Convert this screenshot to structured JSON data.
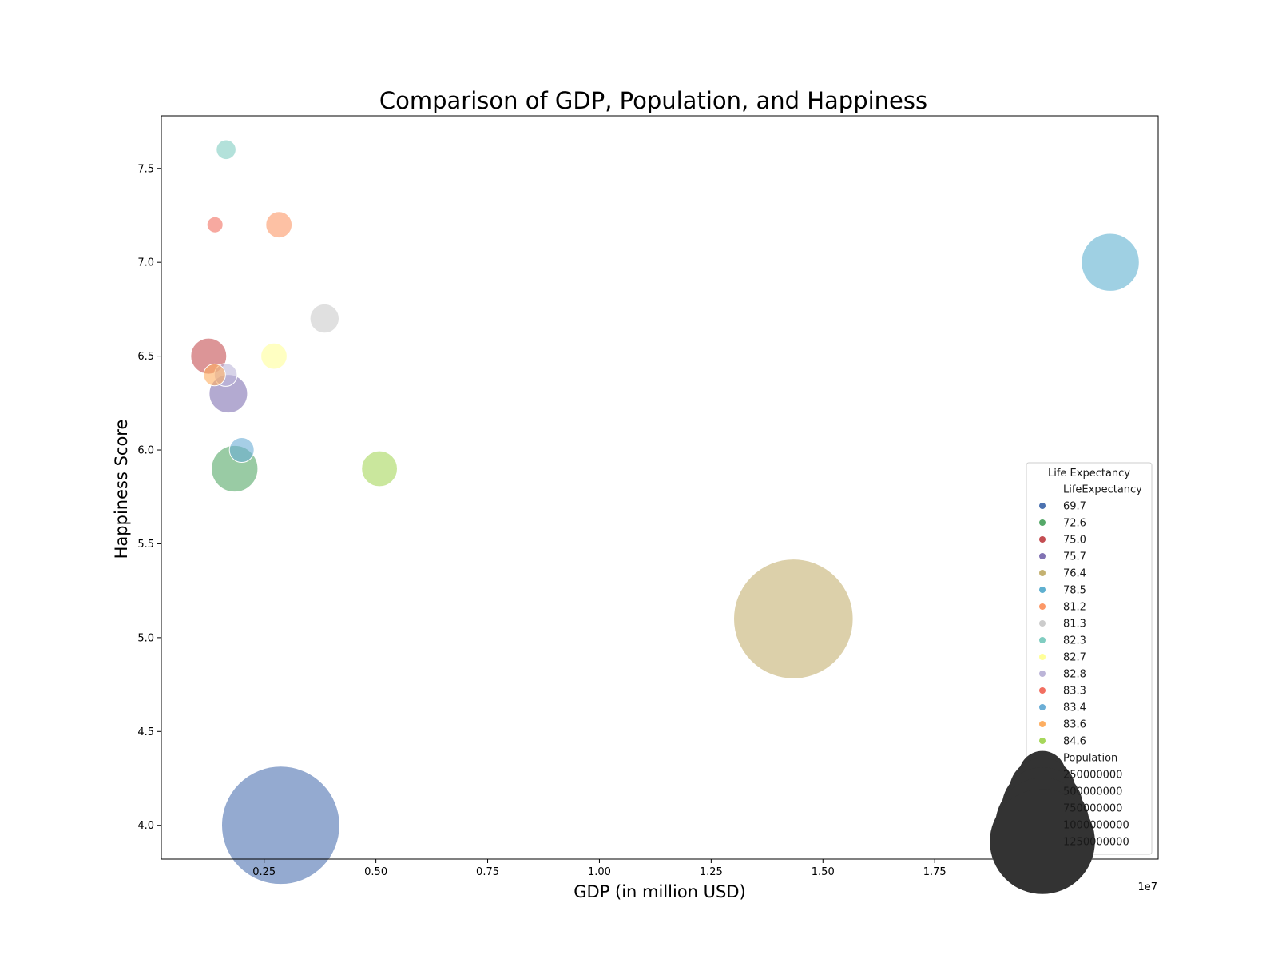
{
  "chart_data": {
    "type": "scatter",
    "title": "Comparison of GDP, Population, and Happiness",
    "xlabel": "GDP (in million USD)",
    "ylabel": "Happiness Score",
    "x_offset_text": "1e7",
    "x_scale_factor": 10000000,
    "xlim": [
      200000,
      22500000
    ],
    "ylim": [
      3.82,
      7.78
    ],
    "x_ticks": [
      2500000,
      5000000,
      7500000,
      10000000,
      12500000,
      15000000,
      17500000,
      20000000
    ],
    "x_tick_labels": [
      "0.25",
      "0.50",
      "0.75",
      "1.00",
      "1.25",
      "1.50",
      "1.75",
      "2.00"
    ],
    "y_ticks": [
      4.0,
      4.5,
      5.0,
      5.5,
      6.0,
      6.5,
      7.0,
      7.5
    ],
    "y_tick_labels": [
      "4.0",
      "4.5",
      "5.0",
      "5.5",
      "6.0",
      "6.5",
      "7.0",
      "7.5"
    ],
    "grid": false,
    "points": [
      {
        "x": 2870000,
        "y": 4.0,
        "population": 1366000000,
        "life_expectancy": "69.7",
        "color": "#4c72b0"
      },
      {
        "x": 14340000,
        "y": 5.1,
        "population": 1398000000,
        "life_expectancy": "76.4",
        "color": "#c4b171"
      },
      {
        "x": 21430000,
        "y": 7.0,
        "population": 328000000,
        "life_expectancy": "78.5",
        "color": "#5fb0d0"
      },
      {
        "x": 5080000,
        "y": 5.9,
        "population": 126000000,
        "life_expectancy": "84.6",
        "color": "#a6d75b"
      },
      {
        "x": 3850000,
        "y": 6.7,
        "population": 83000000,
        "life_expectancy": "81.3",
        "color": "#cccccc"
      },
      {
        "x": 2830000,
        "y": 7.2,
        "population": 67000000,
        "life_expectancy": "81.2",
        "color": "#fc9867"
      },
      {
        "x": 2720000,
        "y": 6.5,
        "population": 67000000,
        "life_expectancy": "82.7",
        "color": "#ffff99"
      },
      {
        "x": 2000000,
        "y": 6.0,
        "population": 60000000,
        "life_expectancy": "83.4",
        "color": "#6baed6"
      },
      {
        "x": 1650000,
        "y": 7.6,
        "population": 38000000,
        "life_expectancy": "82.3",
        "color": "#80cdc1"
      },
      {
        "x": 1840000,
        "y": 5.9,
        "population": 212000000,
        "life_expectancy": "72.6",
        "color": "#55a868"
      },
      {
        "x": 1700000,
        "y": 6.3,
        "population": 144000000,
        "life_expectancy": "75.7",
        "color": "#8172b3"
      },
      {
        "x": 1260000,
        "y": 6.5,
        "population": 127000000,
        "life_expectancy": "75.0",
        "color": "#c44e52"
      },
      {
        "x": 1640000,
        "y": 6.4,
        "population": 51000000,
        "life_expectancy": "82.8",
        "color": "#bcb5d8"
      },
      {
        "x": 1390000,
        "y": 6.4,
        "population": 47000000,
        "life_expectancy": "83.6",
        "color": "#fdae61"
      },
      {
        "x": 1400000,
        "y": 7.2,
        "population": 25000000,
        "life_expectancy": "83.3",
        "color": "#f26f61"
      }
    ],
    "point_alpha": 0.6,
    "legend": {
      "placement": "lower-right",
      "title": "Life Expectancy",
      "hue_header": "LifeExpectancy",
      "hue_entries": [
        {
          "label": "69.7",
          "color": "#4c72b0"
        },
        {
          "label": "72.6",
          "color": "#55a868"
        },
        {
          "label": "75.0",
          "color": "#c44e52"
        },
        {
          "label": "75.7",
          "color": "#8172b3"
        },
        {
          "label": "76.4",
          "color": "#c4b171"
        },
        {
          "label": "78.5",
          "color": "#5fb0d0"
        },
        {
          "label": "81.2",
          "color": "#fc9867"
        },
        {
          "label": "81.3",
          "color": "#cccccc"
        },
        {
          "label": "82.3",
          "color": "#80cdc1"
        },
        {
          "label": "82.7",
          "color": "#ffff99"
        },
        {
          "label": "82.8",
          "color": "#bcb5d8"
        },
        {
          "label": "83.3",
          "color": "#f26f61"
        },
        {
          "label": "83.4",
          "color": "#6baed6"
        },
        {
          "label": "83.6",
          "color": "#fdae61"
        },
        {
          "label": "84.6",
          "color": "#a6d75b"
        }
      ],
      "size_header": "Population",
      "size_entries": [
        {
          "label": "250000000",
          "value": 250000000
        },
        {
          "label": "500000000",
          "value": 500000000
        },
        {
          "label": "750000000",
          "value": 750000000
        },
        {
          "label": "1000000000",
          "value": 1000000000
        },
        {
          "label": "1250000000",
          "value": 1250000000
        }
      ],
      "size_marker_color": "#333333"
    }
  }
}
